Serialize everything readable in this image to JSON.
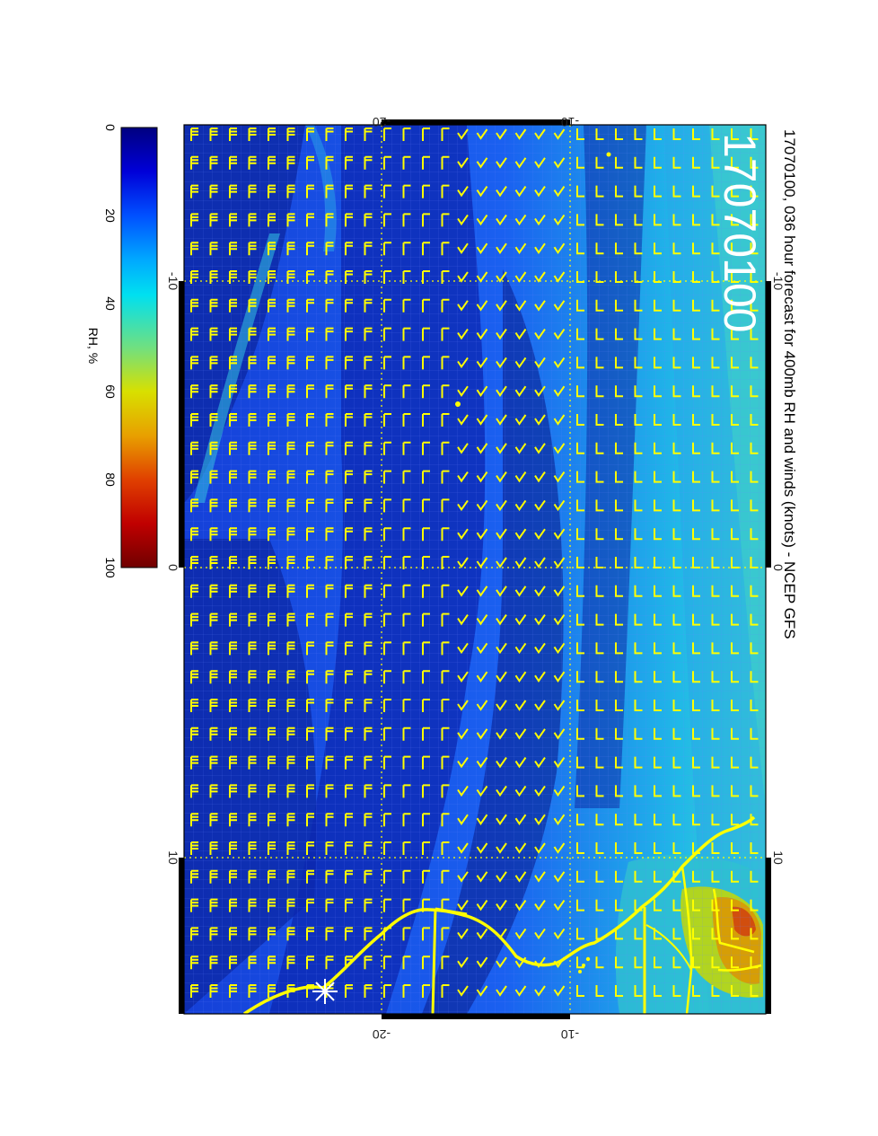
{
  "figure": {
    "title": "17070100, 036 hour forecast for 400mb RH and winds (knots) - NCEP GFS",
    "stamp": "17070100",
    "colorbar": {
      "label": "RH, %",
      "ticks": [
        "0",
        "20",
        "40",
        "60",
        "80",
        "100"
      ],
      "range": [
        0,
        100
      ],
      "colors": [
        "#000080",
        "#0000d8",
        "#0060ff",
        "#00c8ff",
        "#40e0c0",
        "#a0e060",
        "#e0e000",
        "#e09000",
        "#e03000",
        "#b00000",
        "#700000"
      ]
    },
    "map_axes": {
      "vertical_ticks": [
        "-10",
        "0",
        "10"
      ],
      "horizontal_ticks": [
        "-20",
        "-10"
      ]
    },
    "colors": {
      "overlay": "#ffff00",
      "ocean_deep": "#0a1fa0",
      "ocean_mid": "#1a4fe0",
      "moist": "#30c8d8",
      "frame": "#000000"
    },
    "markers": [
      "star-icon"
    ],
    "wind_barbs": "yellow"
  }
}
